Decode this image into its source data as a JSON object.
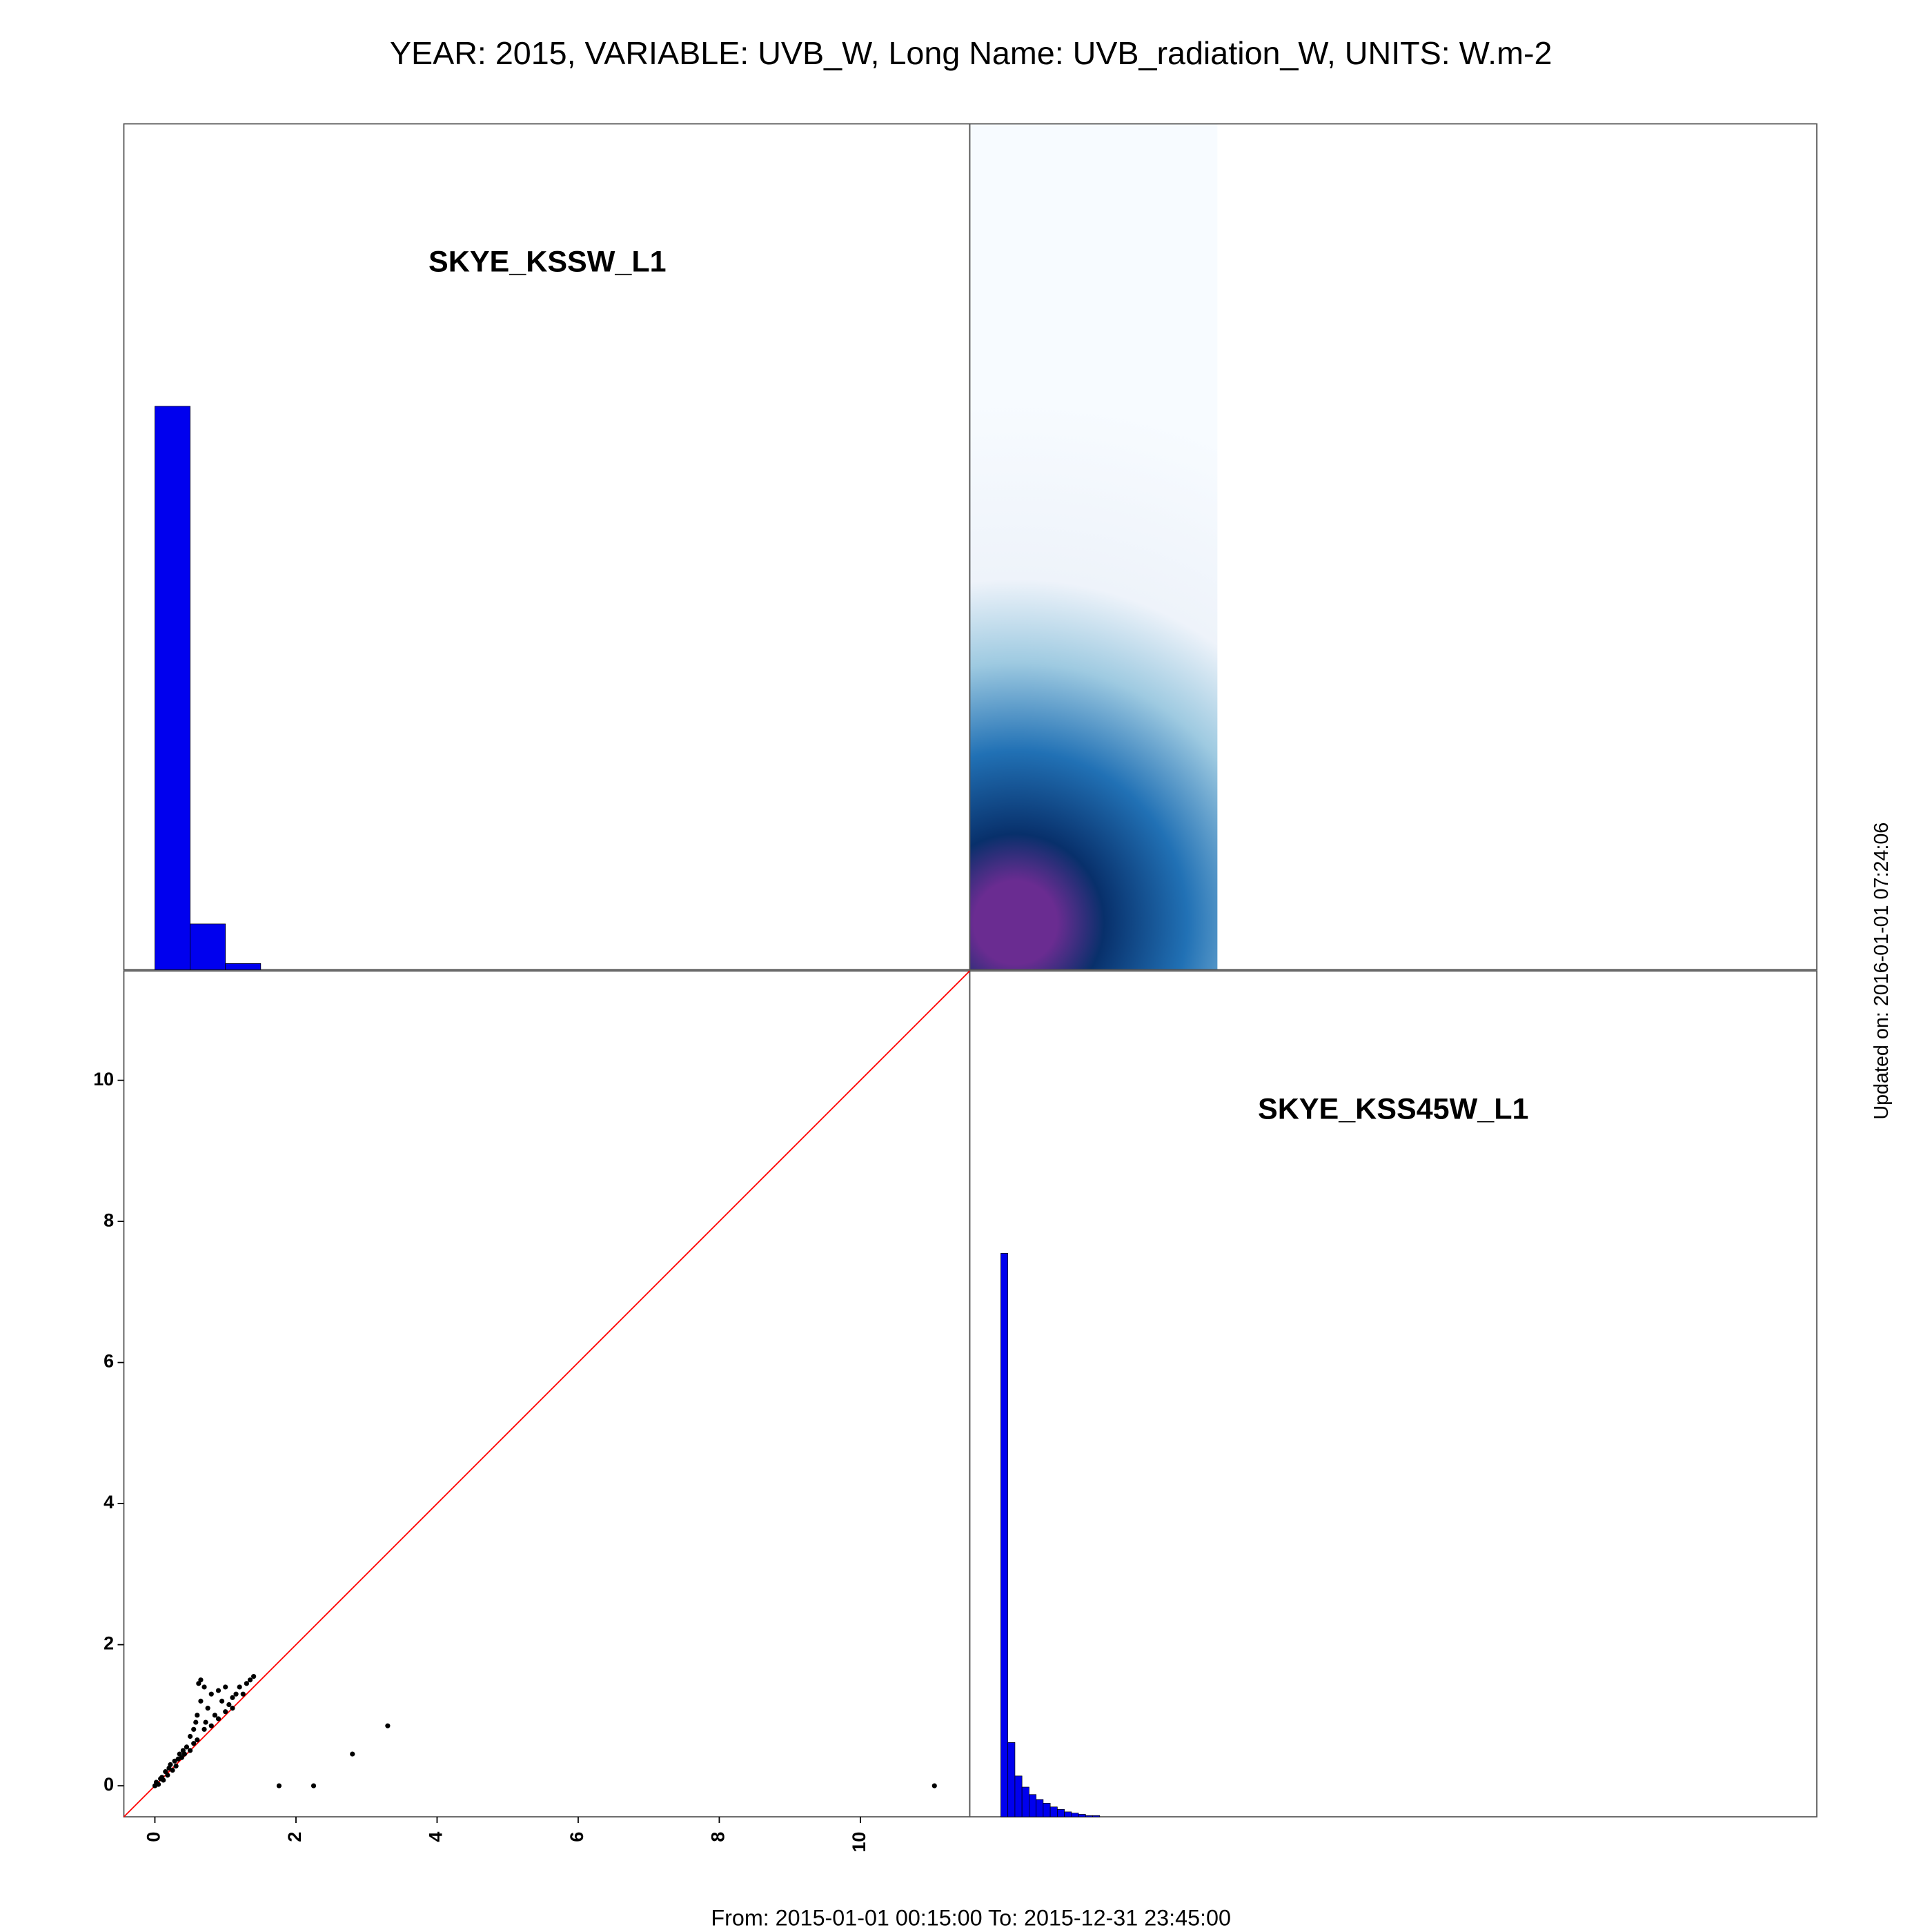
{
  "title": "YEAR: 2015, VARIABLE: UVB_W, Long Name: UVB_radiation_W, UNITS: W.m-2",
  "footer": "From: 2015-01-01 00:15:00 To: 2015-12-31 23:45:00",
  "updated": "Updated on: 2016-01-01 07:24:06",
  "chart_data": [
    {
      "type": "histogram",
      "label": "SKYE_KSSW_L1",
      "bins": [
        0,
        0.5,
        1,
        1.5
      ],
      "values": [
        455,
        37,
        5
      ],
      "color": "#0000ee",
      "xlim": [
        -0.44,
        11.55
      ],
      "ylim": [
        0,
        683
      ]
    },
    {
      "type": "scatter",
      "x": [
        0,
        0.02,
        0.05,
        0.08,
        0.1,
        0.12,
        0.15,
        0.18,
        0.2,
        0.22,
        0.25,
        0.28,
        0.3,
        0.33,
        0.35,
        0.38,
        0.4,
        0.42,
        0.45,
        0.5,
        0.5,
        0.55,
        0.55,
        0.6,
        0.6,
        0.62,
        0.65,
        0.7,
        0.7,
        0.75,
        0.8,
        0.8,
        0.85,
        0.9,
        0.9,
        0.95,
        1.0,
        1.0,
        1.05,
        1.1,
        1.1,
        1.15,
        1.2,
        1.25,
        1.3,
        1.35,
        1.4,
        0.65,
        0.72,
        0.58,
        1.76,
        2.25,
        2.8,
        3.3,
        11.05
      ],
      "y": [
        0,
        0.05,
        0.02,
        0.1,
        0.12,
        0.08,
        0.2,
        0.15,
        0.25,
        0.3,
        0.22,
        0.35,
        0.28,
        0.38,
        0.45,
        0.4,
        0.5,
        0.45,
        0.55,
        0.7,
        0.5,
        0.8,
        0.6,
        1.0,
        0.65,
        1.45,
        1.2,
        1.4,
        0.8,
        1.1,
        1.3,
        0.85,
        1.0,
        1.35,
        0.95,
        1.2,
        1.4,
        1.05,
        1.15,
        1.25,
        1.1,
        1.3,
        1.4,
        1.3,
        1.45,
        1.5,
        1.55,
        1.5,
        0.9,
        0.9,
        0,
        0,
        0.45,
        0.85,
        0
      ],
      "color": "#000000",
      "line_color": "#ff0000",
      "xlim": [
        -0.44,
        11.55
      ],
      "ylim": [
        -0.44,
        11.55
      ],
      "xticks": [
        0,
        2,
        4,
        6,
        8,
        10
      ],
      "yticks": [
        0,
        2,
        4,
        6,
        8,
        10
      ]
    },
    {
      "type": "histogram",
      "label": "SKYE_KSS45W_L1",
      "bins": [
        0,
        0.1,
        0.2,
        0.3,
        0.4,
        0.5,
        0.6,
        0.7,
        0.8,
        0.9,
        1.0,
        1.1,
        1.2,
        1.3,
        1.4
      ],
      "values": [
        455,
        60,
        33,
        24,
        18,
        14,
        11,
        8,
        6,
        4,
        3,
        2,
        1,
        1
      ],
      "color": "#0000ee",
      "xlim": [
        -0.44,
        11.55
      ],
      "ylim": [
        0,
        683
      ]
    }
  ]
}
